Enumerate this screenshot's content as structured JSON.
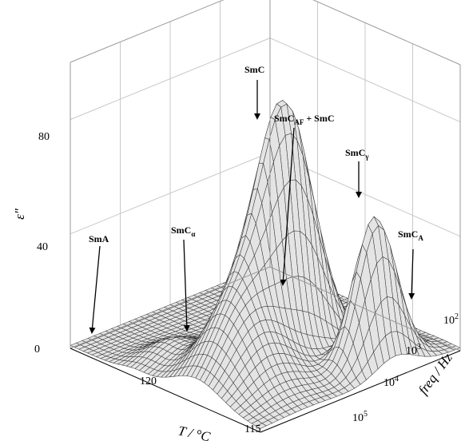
{
  "chart_data": {
    "type": "surface",
    "title": "",
    "xlabel": "T / °C",
    "ylabel": "freq / Hz",
    "zlabel": "ε\"",
    "z_ticks": [
      "0",
      "40",
      "80"
    ],
    "z_tick_values": [
      0,
      40,
      80
    ],
    "zlim": [
      0,
      100
    ],
    "x_ticks": [
      "120",
      "115"
    ],
    "x_tick_values": [
      120,
      115
    ],
    "xlim": [
      124,
      112
    ],
    "y_ticks": [
      {
        "base": "10",
        "exp": "2",
        "value": 100
      },
      {
        "base": "10",
        "exp": "3",
        "value": 1000
      },
      {
        "base": "10",
        "exp": "4",
        "value": 10000
      },
      {
        "base": "10",
        "exp": "5",
        "value": 100000
      }
    ],
    "ylim_log10": [
      1.5,
      5.5
    ],
    "grid": true,
    "peaks": [
      {
        "T": 116.8,
        "log10_freq": 3.5,
        "value": 86
      },
      {
        "T": 113.3,
        "log10_freq": 2.8,
        "value": 52
      }
    ],
    "annotations": [
      {
        "label": "SmA",
        "sub": ""
      },
      {
        "label": "SmC",
        "sub": "α"
      },
      {
        "label": "SmC",
        "sub": ""
      },
      {
        "label": "SmC",
        "sub": "AF",
        "suffix": " + SmC"
      },
      {
        "label": "SmC",
        "sub": "γ"
      },
      {
        "label": "SmC",
        "sub": "A"
      }
    ]
  }
}
